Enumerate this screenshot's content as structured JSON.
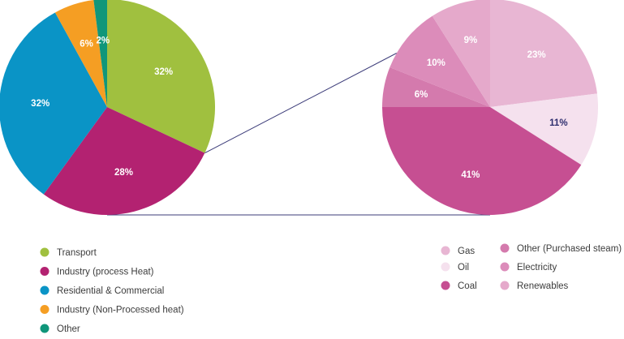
{
  "chart_data": [
    {
      "type": "pie",
      "name": "main",
      "slices": [
        {
          "label": "Transport",
          "value": 32,
          "value_label": "32%",
          "color": "#a0c03f",
          "label_color": "#ffffff"
        },
        {
          "label": "Industry (process Heat)",
          "value": 28,
          "value_label": "28%",
          "color": "#b32271",
          "label_color": "#ffffff"
        },
        {
          "label": "Residential & Commercial",
          "value": 32,
          "value_label": "32%",
          "color": "#0a94c6",
          "label_color": "#ffffff"
        },
        {
          "label": "Industry (Non-Processed heat)",
          "value": 6,
          "value_label": "6%",
          "color": "#f59e23",
          "label_color": "#ffffff"
        },
        {
          "label": "Other",
          "value": 2,
          "value_label": "2%",
          "color": "#10967a",
          "label_color": "#ffffff"
        }
      ],
      "start_angle_deg": 0,
      "direction": "clockwise",
      "legend_position": "bottom-left"
    },
    {
      "type": "pie",
      "name": "breakdown",
      "breakdown_of": "Industry (process Heat)",
      "slices": [
        {
          "label": "Gas",
          "value": 23,
          "value_label": "23%",
          "color": "#e8b6d3",
          "label_color": "#ffffff"
        },
        {
          "label": "Oil",
          "value": 11,
          "value_label": "11%",
          "color": "#f5e1ee",
          "label_color": "#2e2e6e"
        },
        {
          "label": "Coal",
          "value": 41,
          "value_label": "41%",
          "color": "#c64f92",
          "label_color": "#ffffff"
        },
        {
          "label": "Other (Purchased steam)",
          "value": 6,
          "value_label": "6%",
          "color": "#d47aad",
          "label_color": "#ffffff"
        },
        {
          "label": "Electricity",
          "value": 10,
          "value_label": "10%",
          "color": "#dc8cba",
          "label_color": "#ffffff"
        },
        {
          "label": "Renewables",
          "value": 9,
          "value_label": "9%",
          "color": "#e5a9cb",
          "label_color": "#ffffff"
        }
      ],
      "start_angle_deg": 0,
      "direction": "clockwise",
      "legend_position": "bottom-right"
    }
  ],
  "connector_color": "#3d3d7a"
}
